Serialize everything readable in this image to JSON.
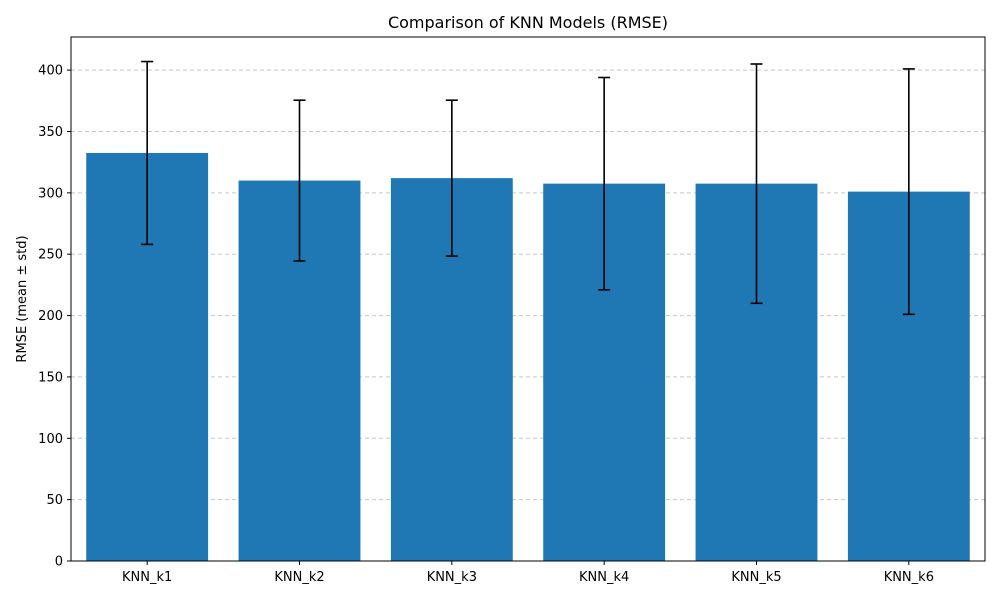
{
  "chart_data": {
    "type": "bar",
    "title": "Comparison of KNN Models (RMSE)",
    "xlabel": "",
    "ylabel": "RMSE (mean ± std)",
    "categories": [
      "KNN_k1",
      "KNN_k2",
      "KNN_k3",
      "KNN_k4",
      "KNN_k5",
      "KNN_k6"
    ],
    "values": [
      332.5,
      310,
      312,
      307.5,
      307.5,
      301
    ],
    "error": [
      74.5,
      65.5,
      63.5,
      86.5,
      97.5,
      100
    ],
    "ylim": [
      0,
      427
    ],
    "yticks": [
      0,
      50,
      100,
      150,
      200,
      250,
      300,
      350,
      400
    ],
    "grid": true,
    "colors": {
      "bar": "#1f77b4",
      "error": "#000000",
      "grid": "#c8c8c8",
      "axis": "#000000"
    }
  }
}
